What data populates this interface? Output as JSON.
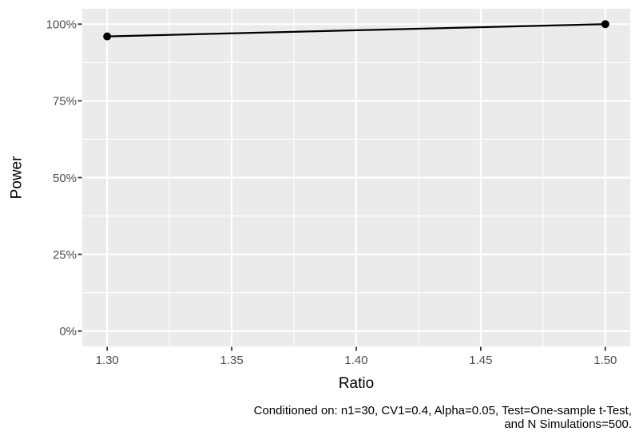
{
  "chart_data": {
    "type": "line",
    "title": "",
    "xlabel": "Ratio",
    "ylabel": "Power",
    "x": [
      1.3,
      1.5
    ],
    "series": [
      {
        "name": "Power",
        "values": [
          0.96,
          1.0
        ]
      }
    ],
    "x_ticks": [
      1.3,
      1.35,
      1.4,
      1.45,
      1.5
    ],
    "x_tick_labels": [
      "1.30",
      "1.35",
      "1.40",
      "1.45",
      "1.50"
    ],
    "x_minor_ticks": [
      1.325,
      1.375,
      1.425,
      1.475
    ],
    "y_ticks": [
      0,
      0.25,
      0.5,
      0.75,
      1.0
    ],
    "y_tick_labels": [
      "0%",
      "25%",
      "50%",
      "75%",
      "100%"
    ],
    "y_minor_ticks": [
      0.125,
      0.375,
      0.625,
      0.875
    ],
    "xlim": [
      1.29,
      1.51
    ],
    "ylim": [
      -0.05,
      1.05
    ],
    "grid": true,
    "legend": "none",
    "caption_lines": [
      "Conditioned on: n1=30, CV1=0.4, Alpha=0.05, Test=One-sample t-Test,",
      "and N Simulations=500."
    ],
    "colors": {
      "panel_background": "#EBEBEB",
      "grid_line": "#FFFFFF",
      "tick_mark": "#333333",
      "tick_label": "#4D4D4D",
      "axis_title": "#000000",
      "caption": "#000000",
      "line": "#000000",
      "point": "#000000",
      "figure_background": "#FFFFFF"
    }
  }
}
